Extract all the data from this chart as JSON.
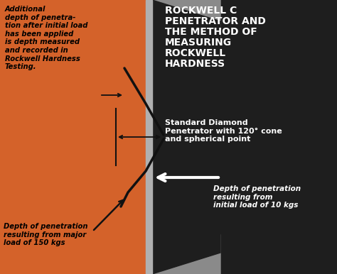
{
  "bg_color": "#c0bfbf",
  "orange_color": "#d4622a",
  "dark_color": "#1e1e1e",
  "gray_med": "#8a8a8a",
  "gray_light": "#b0b0b0",
  "title_text": "ROCKWELL C\nPENETRATOR AND\nTHE METHOD OF\nMEASURING\nROCKWELL\nHARDNESS",
  "subtitle_text": "Standard Diamond\nPenetrator with 120° cone\nand spherical point",
  "label1": "Additional\ndepth of penetra-\ntion after initial load\nhas been applied\nis depth measured\nand recorded in\nRockwell Hardness\nTesting.",
  "label2": "Depth of penetration\nresulting from major\nload of 150 kgs",
  "label3": "Depth of penetration\nresulting from\ninitial load of 10 kgs",
  "figw": 4.74,
  "figh": 3.86,
  "dpi": 100
}
